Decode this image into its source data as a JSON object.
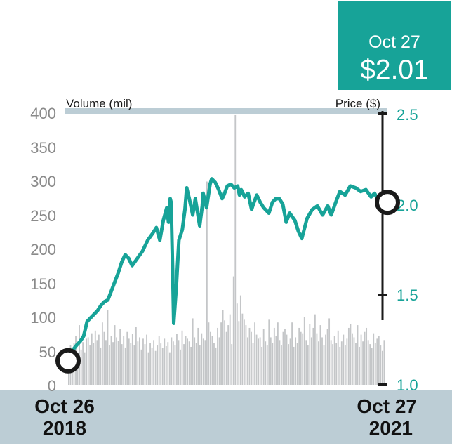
{
  "chart_data": {
    "type": "bar+line",
    "callout": {
      "date": "Oct 27",
      "value": "$2.01"
    },
    "left_axis": {
      "title": "Volume (mil)",
      "ticks": [
        "0",
        "50",
        "100",
        "150",
        "200",
        "250",
        "300",
        "350",
        "400"
      ],
      "ylim": [
        0,
        400
      ]
    },
    "right_axis": {
      "title": "Price ($)",
      "ticks": [
        "1.0",
        "1.5",
        "2.0",
        "2.5"
      ],
      "ylim": [
        1.0,
        2.5
      ]
    },
    "x_axis": {
      "start": {
        "month_day": "Oct 26",
        "year": "2018"
      },
      "end": {
        "month_day": "Oct 27",
        "year": "2021"
      }
    },
    "colors": {
      "price": "#17a398",
      "volume": "#c4c6c8",
      "callout_bg": "#17a398",
      "bottom_band": "#bccdd5",
      "top_band": "#bccdd5"
    },
    "price_points": [
      [
        0.0,
        1.16
      ],
      [
        0.05,
        1.22
      ],
      [
        0.07,
        1.24
      ],
      [
        0.09,
        1.27
      ],
      [
        0.11,
        1.35
      ],
      [
        0.14,
        1.38
      ],
      [
        0.17,
        1.41
      ],
      [
        0.19,
        1.44
      ],
      [
        0.21,
        1.46
      ],
      [
        0.23,
        1.47
      ],
      [
        0.25,
        1.52
      ],
      [
        0.27,
        1.57
      ],
      [
        0.29,
        1.62
      ],
      [
        0.31,
        1.68
      ],
      [
        0.33,
        1.72
      ],
      [
        0.35,
        1.7
      ],
      [
        0.37,
        1.66
      ],
      [
        0.4,
        1.7
      ],
      [
        0.43,
        1.74
      ],
      [
        0.46,
        1.8
      ],
      [
        0.49,
        1.84
      ],
      [
        0.51,
        1.87
      ],
      [
        0.53,
        1.8
      ],
      [
        0.55,
        1.91
      ],
      [
        0.57,
        1.98
      ],
      [
        0.58,
        1.9
      ],
      [
        0.59,
        2.03
      ],
      [
        0.595,
        2.01
      ],
      [
        0.605,
        1.6
      ],
      [
        0.61,
        1.34
      ],
      [
        0.625,
        1.54
      ],
      [
        0.64,
        1.8
      ],
      [
        0.66,
        1.86
      ],
      [
        0.675,
        1.97
      ],
      [
        0.685,
        2.09
      ],
      [
        0.7,
        2.03
      ],
      [
        0.72,
        1.94
      ],
      [
        0.735,
        2.03
      ],
      [
        0.76,
        1.88
      ],
      [
        0.775,
        1.99
      ],
      [
        0.78,
        2.06
      ],
      [
        0.8,
        1.98
      ],
      [
        0.82,
        2.11
      ],
      [
        0.83,
        2.14
      ],
      [
        0.85,
        2.12
      ],
      [
        0.87,
        2.08
      ],
      [
        0.89,
        2.03
      ],
      [
        0.9,
        2.05
      ],
      [
        0.92,
        2.1
      ],
      [
        0.94,
        2.11
      ],
      [
        0.96,
        2.09
      ],
      [
        0.98,
        2.1
      ],
      [
        0.99,
        2.05
      ],
      [
        1.0,
        2.08
      ],
      [
        1.02,
        2.04
      ],
      [
        1.04,
        2.06
      ],
      [
        1.06,
        1.97
      ],
      [
        1.07,
        2.0
      ],
      [
        1.09,
        2.05
      ],
      [
        1.11,
        2.01
      ],
      [
        1.13,
        1.98
      ],
      [
        1.16,
        1.95
      ],
      [
        1.18,
        2.01
      ],
      [
        1.2,
        2.03
      ],
      [
        1.22,
        2.03
      ],
      [
        1.24,
        2.0
      ],
      [
        1.26,
        1.9
      ],
      [
        1.28,
        1.95
      ],
      [
        1.31,
        1.91
      ],
      [
        1.33,
        1.85
      ],
      [
        1.35,
        1.81
      ],
      [
        1.38,
        1.92
      ],
      [
        1.41,
        1.97
      ],
      [
        1.44,
        1.99
      ],
      [
        1.47,
        1.94
      ],
      [
        1.5,
        1.99
      ],
      [
        1.52,
        1.94
      ],
      [
        1.55,
        2.02
      ],
      [
        1.57,
        2.07
      ],
      [
        1.6,
        2.05
      ],
      [
        1.63,
        2.1
      ],
      [
        1.66,
        2.09
      ],
      [
        1.69,
        2.07
      ],
      [
        1.72,
        2.08
      ],
      [
        1.75,
        2.04
      ],
      [
        1.77,
        2.06
      ],
      [
        1.8,
        2.01
      ]
    ],
    "volume_bars": [
      28,
      58,
      38,
      62,
      72,
      45,
      88,
      52,
      63,
      48,
      68,
      70,
      58,
      76,
      62,
      80,
      66,
      74,
      55,
      92,
      78,
      66,
      110,
      58,
      72,
      63,
      88,
      70,
      65,
      82,
      60,
      72,
      55,
      78,
      68,
      62,
      75,
      58,
      85,
      64,
      70,
      52,
      68,
      60,
      74,
      48,
      62,
      55,
      66,
      50,
      58,
      72,
      61,
      54,
      68,
      57,
      63,
      48,
      70,
      64,
      58,
      75,
      66,
      52,
      80,
      60,
      72,
      68,
      64,
      56,
      98,
      70,
      62,
      84,
      58,
      76,
      68,
      66,
      300,
      92,
      78,
      72,
      62,
      55,
      84,
      70,
      92,
      110,
      95,
      78,
      88,
      104,
      60,
      160,
      398,
      120,
      94,
      132,
      105,
      96,
      88,
      70,
      84,
      78,
      62,
      92,
      74,
      68,
      70,
      56,
      82,
      64,
      58,
      96,
      70,
      62,
      84,
      72,
      92,
      66,
      58,
      78,
      82,
      74,
      60,
      68,
      92,
      56,
      70,
      62,
      84,
      78,
      76,
      100,
      66,
      58,
      90,
      70,
      84,
      104,
      76,
      64,
      88,
      70,
      58,
      74,
      82,
      98,
      66,
      60,
      72,
      62,
      80,
      56,
      64,
      74,
      58,
      68,
      84,
      90,
      76,
      70,
      62,
      88,
      56,
      74,
      64,
      78,
      84,
      66,
      60,
      54,
      76,
      62,
      68,
      72,
      58,
      50,
      66
    ]
  }
}
